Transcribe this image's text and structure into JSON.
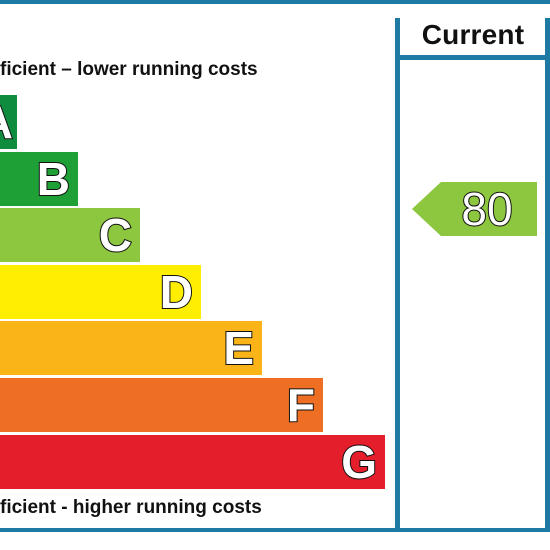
{
  "header": {
    "column_label": "Current"
  },
  "captions": {
    "top": "ficient – lower running costs",
    "bottom": "ficient - higher running costs"
  },
  "bands": [
    {
      "letter": "A",
      "color": "#0f8c3e"
    },
    {
      "letter": "B",
      "color": "#1ea037"
    },
    {
      "letter": "C",
      "color": "#8dc63f"
    },
    {
      "letter": "D",
      "color": "#ffee00"
    },
    {
      "letter": "E",
      "color": "#fbb417"
    },
    {
      "letter": "F",
      "color": "#ee6f23"
    },
    {
      "letter": "G",
      "color": "#e41e2b"
    }
  ],
  "current_rating": {
    "value": "80",
    "color": "#8dc63f"
  },
  "frame_color": "#1e7aa3"
}
